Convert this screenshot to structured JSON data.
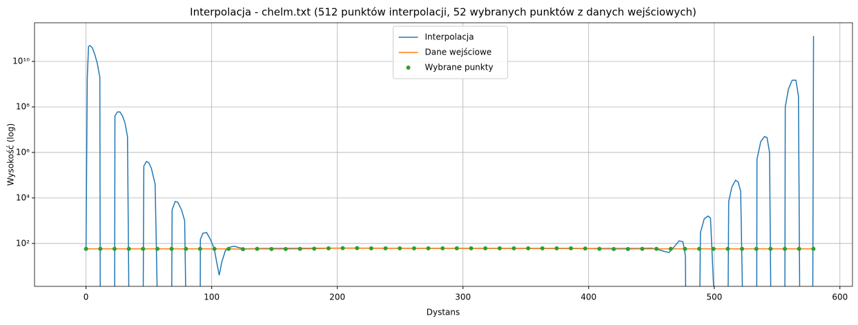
{
  "chart_data": {
    "type": "line",
    "title": "Interpolacja - chelm.txt (512 punktów interpolacji, 52 wybranych punktów z danych wejściowych)",
    "xlabel": "Dystans",
    "ylabel": "Wysokość (log)",
    "xlim": [
      -41,
      610
    ],
    "xticks": [
      0,
      100,
      200,
      300,
      400,
      500,
      600
    ],
    "ylim": [
      1.3,
      500000000000
    ],
    "log_y": true,
    "yticks": [
      {
        "value": 100,
        "label": "10²"
      },
      {
        "value": 10000,
        "label": "10⁴"
      },
      {
        "value": 1000000,
        "label": "10⁶"
      },
      {
        "value": 100000000,
        "label": "10⁸"
      },
      {
        "value": 10000000000,
        "label": "10¹⁰"
      }
    ],
    "grid": true,
    "legend": "upper center",
    "series": [
      {
        "name": "Interpolacja",
        "color": "#1f77b4",
        "style": "line",
        "x": [
          0,
          1,
          2,
          3,
          5,
          7,
          9,
          11,
          11.3,
          11.8,
          22.8,
          23,
          25,
          27,
          29,
          31,
          33,
          34.1,
          34.5,
          45.5,
          46,
          48,
          50,
          52,
          55,
          56.7,
          57,
          68.2,
          68.5,
          71,
          73,
          76,
          78.5,
          79.4,
          80,
          90.9,
          91,
          93,
          96,
          99,
          102,
          104,
          106,
          108,
          111,
          115,
          118,
          122,
          126,
          140,
          200,
          300,
          400,
          440,
          450,
          455,
          460,
          464,
          468,
          472,
          475,
          477,
          477.3,
          478,
          488.5,
          489,
          492,
          495,
          497,
          499.8,
          500,
          511,
          511.5,
          514,
          517,
          519,
          521,
          522.5,
          523,
          533.8,
          534,
          537,
          540,
          542,
          544,
          545,
          545.5,
          556.2,
          556.5,
          559,
          562,
          565,
          567,
          568,
          568.5,
          578.4,
          579
        ],
        "values": [
          60,
          2000000000,
          45000000000,
          50000000000,
          40000000000,
          20000000000,
          8000000000,
          2000000000,
          0.5,
          null,
          0.5,
          40000000,
          60000000,
          60000000,
          40000000,
          20000000,
          5000000,
          0.5,
          null,
          0.5,
          250000,
          400000,
          350000,
          200000,
          40000,
          0.5,
          null,
          0.5,
          3000,
          7000,
          6500,
          3000,
          1000,
          0.5,
          null,
          0.5,
          150,
          280,
          300,
          150,
          60,
          15,
          4,
          15,
          50,
          70,
          75,
          65,
          58,
          60,
          62,
          61,
          60,
          60,
          62,
          55,
          45,
          40,
          70,
          130,
          120,
          30,
          0.5,
          null,
          0.5,
          300,
          1200,
          1600,
          1300,
          0.5,
          null,
          0.5,
          7000,
          30000,
          60000,
          50000,
          20000,
          0.5,
          null,
          0.5,
          500000,
          3000000,
          5000000,
          4500000,
          1000000,
          0.5,
          null,
          0.5,
          100000000,
          600000000,
          1500000000,
          1500000000,
          300000000,
          0.5,
          null,
          0.5,
          130000000000
        ]
      },
      {
        "name": "Dane wejściowe",
        "color": "#ff7f0e",
        "style": "line",
        "x": [
          0,
          11.4,
          22.7,
          34.1,
          45.4,
          56.8,
          68.1,
          79.5,
          90.8,
          102.2,
          113.5,
          124.9,
          136.2,
          147.6,
          158.9,
          170.3,
          181.6,
          193,
          204.3,
          215.7,
          227,
          238.4,
          249.7,
          261.1,
          272.4,
          283.8,
          295.1,
          306.5,
          317.8,
          329.2,
          340.5,
          351.9,
          363.2,
          374.6,
          385.9,
          397.3,
          408.6,
          420,
          431.3,
          442.7,
          454,
          465.4,
          476.7,
          488.1,
          499.4,
          510.8,
          522.1,
          533.5,
          544.8,
          556.2,
          567.5,
          578.9
        ],
        "values": [
          58,
          58,
          58,
          58,
          58,
          58,
          58,
          58,
          58,
          58,
          58,
          56,
          58,
          57,
          57,
          58,
          59,
          61,
          62,
          62,
          61,
          61,
          61,
          61,
          61,
          61,
          61,
          61,
          61,
          61,
          61,
          61,
          61,
          61,
          61,
          60,
          58,
          57,
          57,
          58,
          58,
          58,
          58,
          58,
          58,
          58,
          58,
          58,
          58,
          58,
          58,
          58
        ]
      },
      {
        "name": "Wybrane punkty",
        "color": "#2ca02c",
        "style": "marker",
        "x": [
          0,
          11.4,
          22.7,
          34.1,
          45.4,
          56.8,
          68.1,
          79.5,
          90.8,
          102.2,
          113.5,
          124.9,
          136.2,
          147.6,
          158.9,
          170.3,
          181.6,
          193,
          204.3,
          215.7,
          227,
          238.4,
          249.7,
          261.1,
          272.4,
          283.8,
          295.1,
          306.5,
          317.8,
          329.2,
          340.5,
          351.9,
          363.2,
          374.6,
          385.9,
          397.3,
          408.6,
          420,
          431.3,
          442.7,
          454,
          465.4,
          476.7,
          488.1,
          499.4,
          510.8,
          522.1,
          533.5,
          544.8,
          556.2,
          567.5,
          578.9
        ],
        "values": [
          58,
          58,
          58,
          58,
          58,
          58,
          58,
          58,
          58,
          58,
          58,
          56,
          58,
          57,
          57,
          58,
          59,
          61,
          62,
          62,
          61,
          61,
          61,
          61,
          61,
          61,
          61,
          61,
          61,
          61,
          61,
          61,
          61,
          61,
          61,
          60,
          58,
          57,
          57,
          58,
          58,
          58,
          58,
          58,
          58,
          58,
          58,
          58,
          58,
          58,
          58,
          58
        ]
      }
    ]
  }
}
